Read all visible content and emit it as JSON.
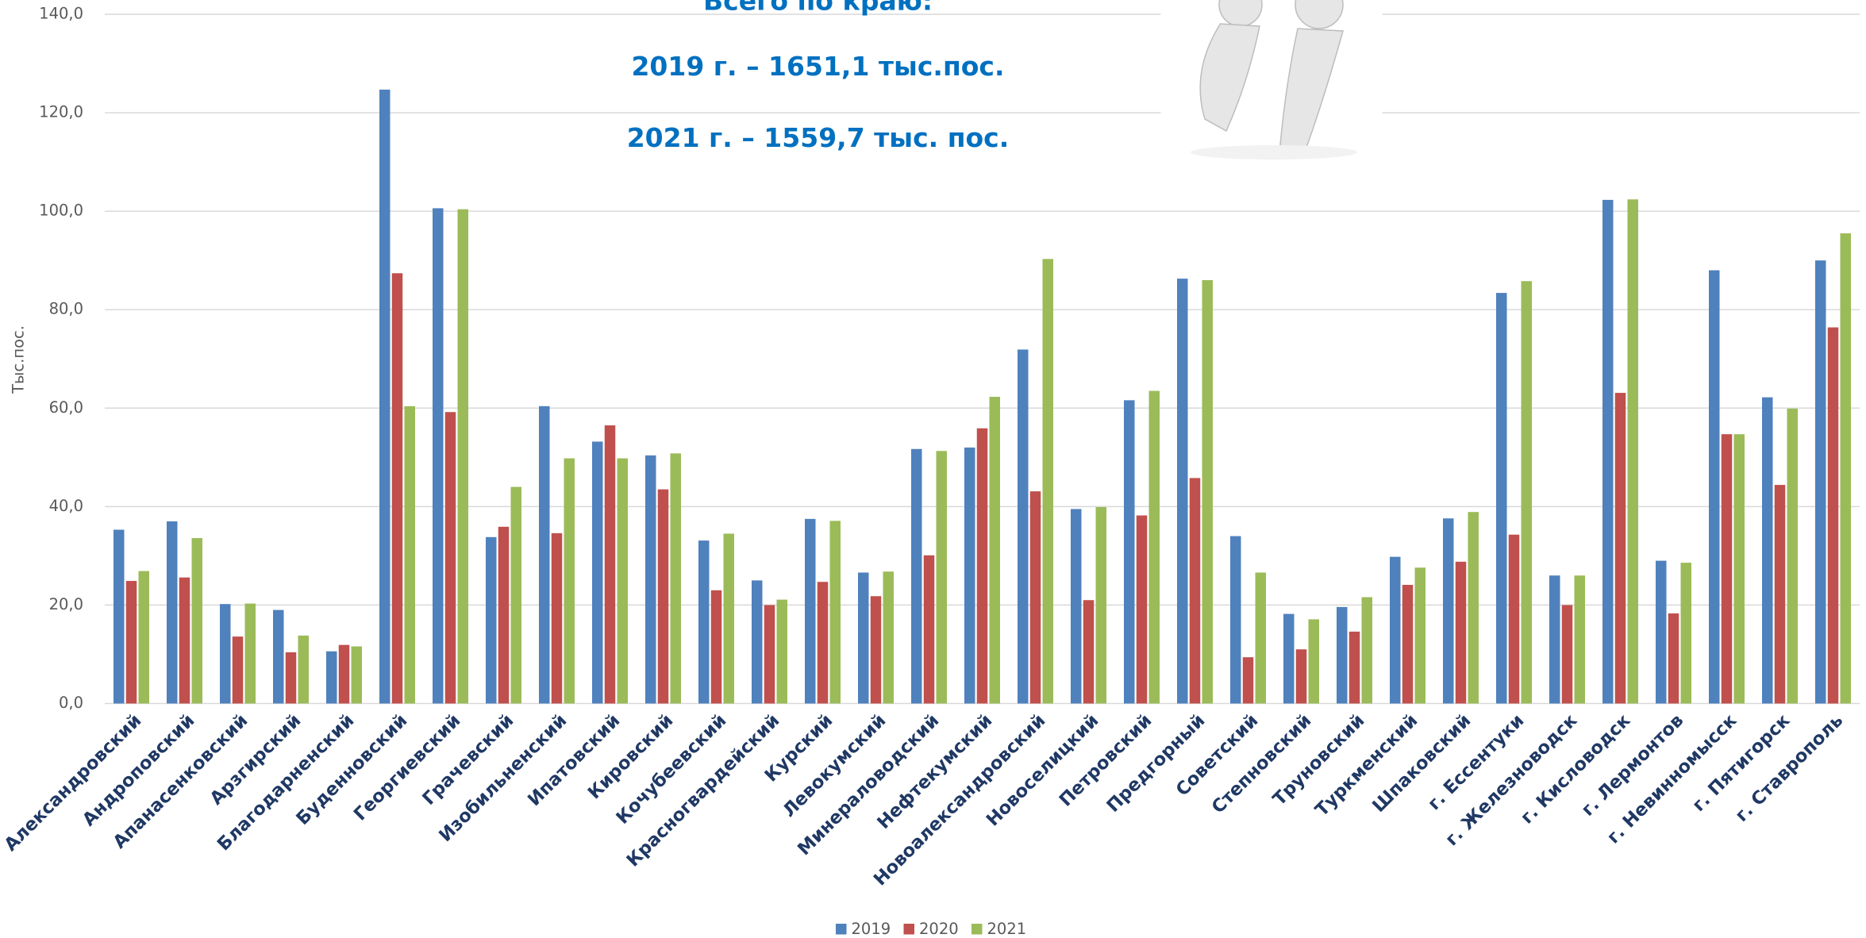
{
  "chart_data": {
    "type": "bar",
    "title": "Всего по краю:",
    "subtitle": [
      "2019 г. – 1651,1 тыс.пос.",
      "2021 г. – 1559,7 тыс. пос."
    ],
    "y_label": "Тыс.пос.",
    "categories": [
      "Александровский",
      "Андроповский",
      "Апанасенковский",
      "Арзгирский",
      "Благодарненский",
      "Буденновский",
      "Георгиевский",
      "Грачевский",
      "Изобильненский",
      "Ипатовский",
      "Кировский",
      "Кочубеевский",
      "Красногвардейский",
      "Курский",
      "Левокумский",
      "Минераловодский",
      "Нефтекумский",
      "Новоалександровский",
      "Новоселицкий",
      "Петровский",
      "Предгорный",
      "Советский",
      "Степновский",
      "Труновский",
      "Туркменский",
      "Шпаковский",
      "г. Ессентуки",
      "г. Железноводск",
      "г. Кисловодск",
      "г. Лермонтов",
      "г. Невинномысск",
      "г. Пятигорск",
      "г. Ставрополь"
    ],
    "series": [
      {
        "name": "2019",
        "color": "#4f81bd",
        "values": [
          35.3,
          37.0,
          20.2,
          19.0,
          10.6,
          124.7,
          100.6,
          33.8,
          60.4,
          53.2,
          50.4,
          33.1,
          25.0,
          37.5,
          26.6,
          51.7,
          52.0,
          71.9,
          39.5,
          61.6,
          86.3,
          34.0,
          18.2,
          19.6,
          29.8,
          37.6,
          83.4,
          26.0,
          102.3,
          29.0,
          88.0,
          62.2,
          90.0
        ]
      },
      {
        "name": "2020",
        "color": "#c0504d",
        "values": [
          24.9,
          25.6,
          13.6,
          10.4,
          11.9,
          87.4,
          59.2,
          35.9,
          34.6,
          56.5,
          43.5,
          23.0,
          20.0,
          24.7,
          21.8,
          30.1,
          55.9,
          43.1,
          21.0,
          38.2,
          45.8,
          9.4,
          11.0,
          14.6,
          24.1,
          28.8,
          34.3,
          20.0,
          63.1,
          18.3,
          54.7,
          44.4,
          76.4
        ]
      },
      {
        "name": "2021",
        "color": "#9bbb59",
        "values": [
          26.9,
          33.6,
          20.3,
          13.8,
          11.6,
          60.4,
          100.4,
          44.0,
          49.8,
          49.8,
          50.8,
          34.5,
          21.1,
          37.1,
          26.8,
          51.3,
          62.3,
          90.3,
          39.9,
          63.5,
          86.0,
          26.6,
          17.1,
          21.6,
          27.6,
          38.9,
          85.8,
          26.0,
          102.4,
          28.6,
          54.7,
          59.9,
          95.5
        ]
      }
    ],
    "ylim": [
      0,
      140
    ],
    "yticks": [
      {
        "value": 0,
        "label": "0,0"
      },
      {
        "value": 20,
        "label": "20,0"
      },
      {
        "value": 40,
        "label": "40,0"
      },
      {
        "value": 60,
        "label": "60,0"
      },
      {
        "value": 80,
        "label": "80,0"
      },
      {
        "value": 100,
        "label": "100,0"
      },
      {
        "value": 120,
        "label": "120,0"
      },
      {
        "value": 140,
        "label": "140,0"
      }
    ],
    "grid": true,
    "legend": "bottom"
  }
}
